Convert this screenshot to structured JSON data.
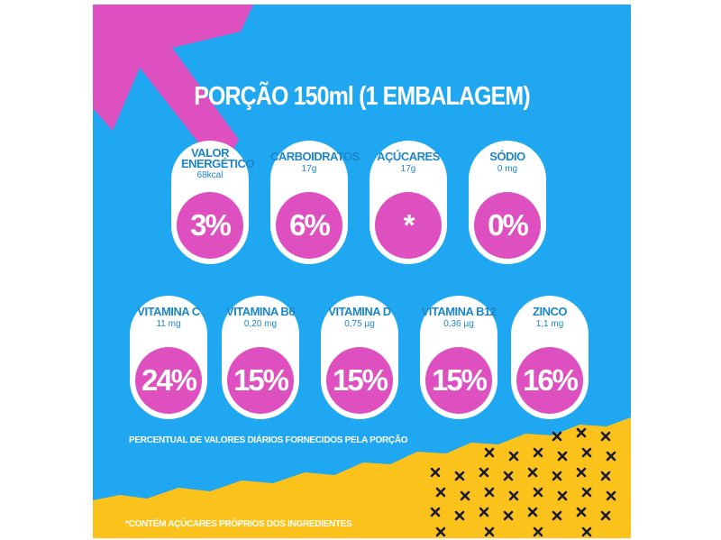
{
  "title": "PORÇÃO 150ml (1 EMBALAGEM)",
  "row1": [
    {
      "name": "VALOR ENERGÉTICO",
      "amount": "68kcal",
      "percent": "3%"
    },
    {
      "name": "CARBOIDRATOS",
      "amount": "17g",
      "percent": "6%"
    },
    {
      "name": "AÇÚCARES",
      "amount": "17g",
      "percent": "*"
    },
    {
      "name": "SÓDIO",
      "amount": "0 mg",
      "percent": "0%"
    }
  ],
  "row2": [
    {
      "name": "VITAMINA C",
      "amount": "11 mg",
      "percent": "24%"
    },
    {
      "name": "VITAMINA B6",
      "amount": "0,20 mg",
      "percent": "15%"
    },
    {
      "name": "VITAMINA D",
      "amount": "0,75 µg",
      "percent": "15%"
    },
    {
      "name": "VITAMINA B12",
      "amount": "0,36 µg",
      "percent": "15%"
    },
    {
      "name": "ZINCO",
      "amount": "1,1 mg",
      "percent": "16%"
    }
  ],
  "footnote_percent": "PERCENTUAL DE VALORES DIÁRIOS FORNECIDOS PELA PORÇÃO",
  "footnote_sugar": "*CONTÉM AÇÚCARES PRÓPRIOS DOS INGREDIENTES",
  "colors": {
    "background": "#1fa7f2",
    "accent": "#de4fbf",
    "yellow": "#fbc21c",
    "text_blue": "#1d86c8"
  }
}
